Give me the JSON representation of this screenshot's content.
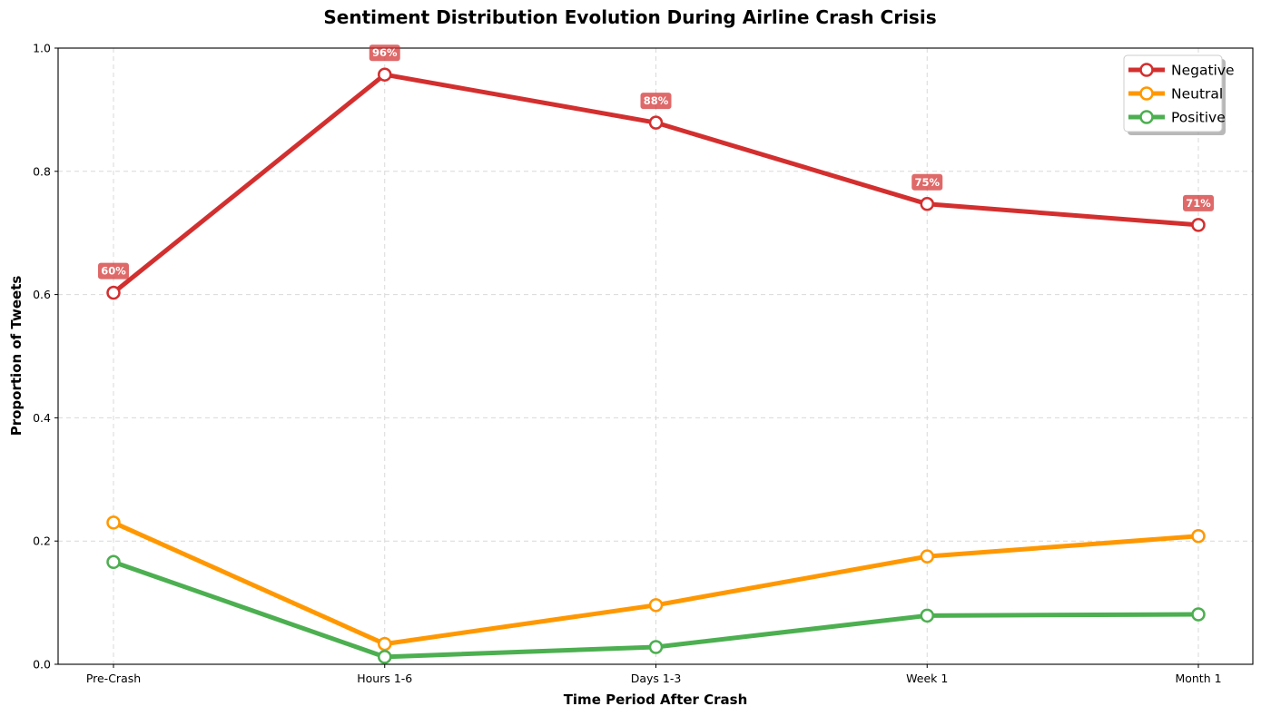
{
  "chart_data": {
    "type": "line",
    "title": "Sentiment Distribution Evolution During Airline Crash Crisis",
    "xlabel": "Time Period After Crash",
    "ylabel": "Proportion of Tweets",
    "categories": [
      "Pre-Crash",
      "Hours 1-6",
      "Days 1-3",
      "Week 1",
      "Month 1"
    ],
    "ylim": [
      0,
      1.0
    ],
    "yticks": [
      0.0,
      0.2,
      0.4,
      0.6,
      0.8,
      1.0
    ],
    "ytick_labels": [
      "0.0",
      "0.2",
      "0.4",
      "0.6",
      "0.8",
      "1.0"
    ],
    "grid": true,
    "legend_position": "top-right",
    "series": [
      {
        "name": "Negative",
        "color": "#d32f2f",
        "values": [
          0.603,
          0.957,
          0.879,
          0.747,
          0.713
        ],
        "data_labels": [
          "60%",
          "96%",
          "88%",
          "75%",
          "71%"
        ]
      },
      {
        "name": "Neutral",
        "color": "#ff9800",
        "values": [
          0.23,
          0.033,
          0.096,
          0.175,
          0.208
        ]
      },
      {
        "name": "Positive",
        "color": "#4caf50",
        "values": [
          0.166,
          0.012,
          0.028,
          0.079,
          0.081
        ]
      }
    ]
  }
}
